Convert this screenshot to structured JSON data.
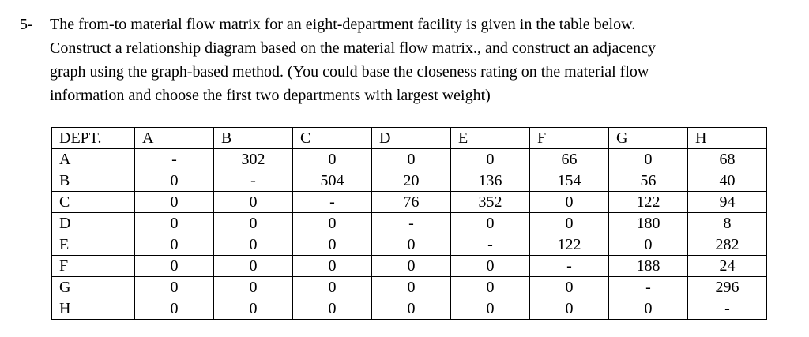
{
  "problem": {
    "number": "5-",
    "line1": "The from-to material flow matrix for an eight-department facility is given in the table below.",
    "line2": "Construct a relationship diagram based on the material flow matrix., and construct an adjacency",
    "line3": "graph using the graph-based method. (You could base the closeness rating on the material flow",
    "line4": "information and choose the first two departments with largest weight)"
  },
  "table": {
    "headers": [
      "DEPT.",
      "A",
      "B",
      "C",
      "D",
      "E",
      "F",
      "G",
      "H"
    ],
    "rows": [
      {
        "dept": "A",
        "values": [
          "-",
          "302",
          "0",
          "0",
          "0",
          "66",
          "0",
          "68"
        ]
      },
      {
        "dept": "B",
        "values": [
          "0",
          "-",
          "504",
          "20",
          "136",
          "154",
          "56",
          "40"
        ]
      },
      {
        "dept": "C",
        "values": [
          "0",
          "0",
          "-",
          "76",
          "352",
          "0",
          "122",
          "94"
        ]
      },
      {
        "dept": "D",
        "values": [
          "0",
          "0",
          "0",
          "-",
          "0",
          "0",
          "180",
          "8"
        ]
      },
      {
        "dept": "E",
        "values": [
          "0",
          "0",
          "0",
          "0",
          "-",
          "122",
          "0",
          "282"
        ]
      },
      {
        "dept": "F",
        "values": [
          "0",
          "0",
          "0",
          "0",
          "0",
          "-",
          "188",
          "24"
        ]
      },
      {
        "dept": "G",
        "values": [
          "0",
          "0",
          "0",
          "0",
          "0",
          "0",
          "-",
          "296"
        ]
      },
      {
        "dept": "H",
        "values": [
          "0",
          "0",
          "0",
          "0",
          "0",
          "0",
          "0",
          "-"
        ]
      }
    ]
  },
  "colors": {
    "background": "#ffffff",
    "text": "#000000",
    "table_border": "#000000"
  }
}
